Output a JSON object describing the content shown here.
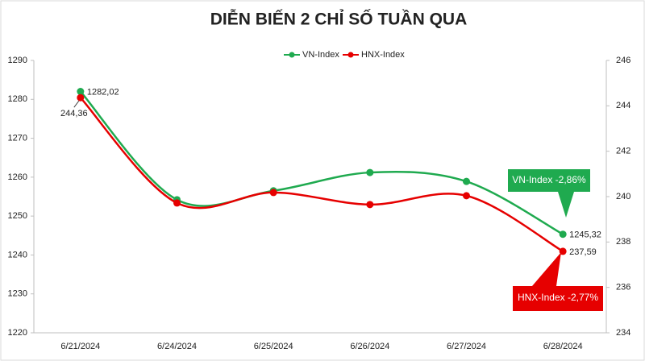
{
  "chart_data": {
    "type": "line",
    "title": "DIỄN BIẾN 2 CHỈ SỐ TUẦN QUA",
    "categories": [
      "6/21/2024",
      "6/24/2024",
      "6/25/2024",
      "6/26/2024",
      "6/27/2024",
      "6/28/2024"
    ],
    "series": [
      {
        "name": "VN-Index",
        "color": "#1faa4f",
        "values": [
          1282.02,
          1254.2,
          1256.5,
          1261.2,
          1258.9,
          1245.32
        ],
        "value_labels": [
          "1282,02",
          null,
          null,
          null,
          null,
          "1245,32"
        ]
      },
      {
        "name": "HNX-Index",
        "color": "#e60000",
        "axis": "y2",
        "values": [
          244.36,
          239.72,
          240.18,
          239.65,
          240.04,
          237.59
        ],
        "value_labels": [
          "244,36",
          null,
          null,
          null,
          null,
          "237,59"
        ]
      }
    ],
    "ylim": [
      1220,
      1290
    ],
    "yticks": [
      1220,
      1230,
      1240,
      1250,
      1260,
      1270,
      1280,
      1290
    ],
    "y2lim": [
      234,
      246
    ],
    "y2ticks": [
      234,
      236,
      238,
      240,
      242,
      244,
      246
    ],
    "grid": false,
    "smooth": true,
    "legend": "top",
    "annotations": [
      {
        "text": "VN-Index -2,86%"
      },
      {
        "text": "HNX-Index -2,77%"
      }
    ]
  }
}
